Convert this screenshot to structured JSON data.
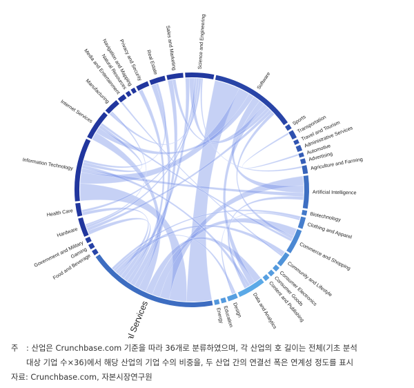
{
  "chart_data": {
    "type": "chord",
    "segments": [
      {
        "name": "Software",
        "value": 10.5
      },
      {
        "name": "Sports",
        "value": 0.6
      },
      {
        "name": "Transportation",
        "value": 1.0
      },
      {
        "name": "Travel and Tourism",
        "value": 0.5
      },
      {
        "name": "Administrative Services",
        "value": 0.7
      },
      {
        "name": "Automotive",
        "value": 0.5
      },
      {
        "name": "Advertising",
        "value": 0.6
      },
      {
        "name": "Agriculture and Farming",
        "value": 1.0
      },
      {
        "name": "Artificial Intelligence",
        "value": 4.0
      },
      {
        "name": "Biotechnology",
        "value": 0.6
      },
      {
        "name": "Clothing and Apparel",
        "value": 1.4
      },
      {
        "name": "Commerce and Shopping",
        "value": 3.0
      },
      {
        "name": "Community and Lifestyle",
        "value": 1.7
      },
      {
        "name": "Consumer Electronics",
        "value": 0.6
      },
      {
        "name": "Consumer Goods",
        "value": 0.6
      },
      {
        "name": "Content and Publishing",
        "value": 0.6
      },
      {
        "name": "Data and Analytics",
        "value": 3.4
      },
      {
        "name": "Design",
        "value": 1.2
      },
      {
        "name": "Education",
        "value": 0.6
      },
      {
        "name": "Energy",
        "value": 0.6
      },
      {
        "name": "Financial Services",
        "value": 16.0
      },
      {
        "name": "Food and Beverage",
        "value": 0.6
      },
      {
        "name": "Gaming",
        "value": 0.6
      },
      {
        "name": "Government and Military",
        "value": 0.6
      },
      {
        "name": "Hardware",
        "value": 2.3
      },
      {
        "name": "Health Care",
        "value": 1.6
      },
      {
        "name": "Information Technology",
        "value": 7.7
      },
      {
        "name": "Internet Services",
        "value": 3.6
      },
      {
        "name": "Manufacturing",
        "value": 1.8
      },
      {
        "name": "Media and Entertainment",
        "value": 0.9
      },
      {
        "name": "Natural Resources",
        "value": 0.5
      },
      {
        "name": "Navigation and Mapping",
        "value": 0.5
      },
      {
        "name": "Privacy and Security",
        "value": 1.5
      },
      {
        "name": "Real Estate",
        "value": 1.9
      },
      {
        "name": "Sales and Marketing",
        "value": 2.0
      },
      {
        "name": "Science and Engineering",
        "value": 3.5
      }
    ],
    "chords": [
      [
        "Financial Services",
        "Software",
        3.2
      ],
      [
        "Financial Services",
        "Information Technology",
        2.2
      ],
      [
        "Financial Services",
        "Artificial Intelligence",
        1.2
      ],
      [
        "Financial Services",
        "Commerce and Shopping",
        1.0
      ],
      [
        "Financial Services",
        "Data and Analytics",
        0.9
      ],
      [
        "Financial Services",
        "Internet Services",
        1.0
      ],
      [
        "Financial Services",
        "Real Estate",
        0.6
      ],
      [
        "Financial Services",
        "Sales and Marketing",
        0.6
      ],
      [
        "Financial Services",
        "Privacy and Security",
        0.5
      ],
      [
        "Financial Services",
        "Science and Engineering",
        0.5
      ],
      [
        "Financial Services",
        "Hardware",
        0.5
      ],
      [
        "Financial Services",
        "Health Care",
        0.4
      ],
      [
        "Financial Services",
        "Community and Lifestyle",
        0.5
      ],
      [
        "Financial Services",
        "Design",
        0.3
      ],
      [
        "Financial Services",
        "Clothing and Apparel",
        0.3
      ],
      [
        "Software",
        "Information Technology",
        1.4
      ],
      [
        "Software",
        "Internet Services",
        0.7
      ],
      [
        "Software",
        "Artificial Intelligence",
        0.9
      ],
      [
        "Software",
        "Data and Analytics",
        0.7
      ],
      [
        "Software",
        "Science and Engineering",
        0.6
      ],
      [
        "Software",
        "Sales and Marketing",
        0.4
      ],
      [
        "Software",
        "Hardware",
        0.4
      ],
      [
        "Software",
        "Commerce and Shopping",
        0.4
      ],
      [
        "Information Technology",
        "Artificial Intelligence",
        0.5
      ],
      [
        "Information Technology",
        "Data and Analytics",
        0.4
      ],
      [
        "Information Technology",
        "Internet Services",
        0.4
      ],
      [
        "Information Technology",
        "Real Estate",
        0.3
      ],
      [
        "Science and Engineering",
        "Health Care",
        0.3
      ],
      [
        "Science and Engineering",
        "Hardware",
        0.3
      ],
      [
        "Science and Engineering",
        "Manufacturing",
        0.3
      ],
      [
        "Internet Services",
        "Commerce and Shopping",
        0.3
      ],
      [
        "Media and Entertainment",
        "Community and Lifestyle",
        0.2
      ],
      [
        "Design",
        "Clothing and Apparel",
        0.2
      ],
      [
        "Manufacturing",
        "Hardware",
        0.2
      ],
      [
        "Artificial Intelligence",
        "Data and Analytics",
        0.4
      ],
      [
        "Agriculture and Farming",
        "Science and Engineering",
        0.2
      ],
      [
        "Transportation",
        "Automotive",
        0.2
      ]
    ]
  },
  "notes": {
    "note_prefix": "주",
    "note_line1": ": 산업은 Crunchbase.com 기준을 따라  36개로 분류하였으며, 각 산업의 호 길이는 전체(기초 분석",
    "note_line2": "대상 기업 수×36)에서 해당 산업의 기업 수의 비중을, 두 산업 간의 연결선 폭은 연계성 정도를 표시",
    "source_line": "자료: Crunchbase.com, 자본시장연구원"
  }
}
